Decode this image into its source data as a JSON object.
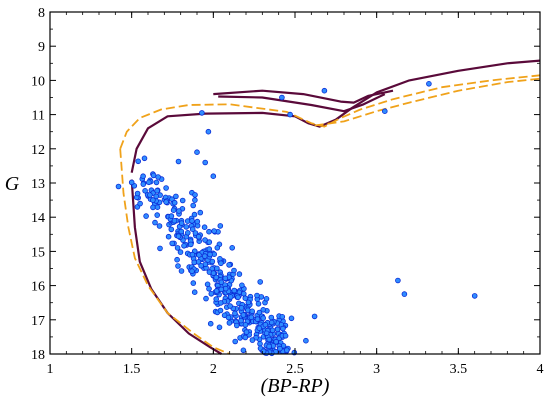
{
  "chart_data": {
    "type": "scatter",
    "xlabel": "(BP-RP)",
    "ylabel": "G",
    "xlim": [
      1,
      4
    ],
    "ylim": [
      18,
      8
    ],
    "y_inverted": true,
    "grid": false,
    "x_ticks": [
      1,
      1.5,
      2,
      2.5,
      3,
      3.5,
      4
    ],
    "x_tick_labels": [
      "1",
      "1.5",
      "2",
      "2.5",
      "3",
      "3.5",
      "4"
    ],
    "y_ticks": [
      8,
      9,
      10,
      11,
      12,
      13,
      14,
      15,
      16,
      17,
      18
    ],
    "y_tick_labels": [
      "8",
      "9",
      "10",
      "11",
      "12",
      "13",
      "14",
      "15",
      "16",
      "17",
      "18"
    ],
    "colors": {
      "points_fill": "#2f8cff",
      "points_edge": "#0a2bd6",
      "isochrone_1": "#5a0a3a",
      "isochrone_2": "#f0a21a"
    },
    "series": [
      {
        "kind": "points",
        "cluster": {
          "count": 460,
          "seed": 7,
          "sequence": [
            [
              1.62,
              13.0
            ],
            [
              1.75,
              13.8
            ],
            [
              1.85,
              14.5
            ],
            [
              1.95,
              15.2
            ],
            [
              2.05,
              15.9
            ],
            [
              2.15,
              16.5
            ],
            [
              2.25,
              17.0
            ],
            [
              2.35,
              17.5
            ],
            [
              2.42,
              17.9
            ]
          ],
          "spread": 0.075
        },
        "extra_points": [
          [
            1.97,
            11.5
          ],
          [
            1.95,
            12.4
          ],
          [
            1.93,
            10.95
          ],
          [
            2.42,
            10.5
          ],
          [
            2.47,
            11.0
          ],
          [
            2.68,
            10.3
          ],
          [
            3.05,
            10.9
          ],
          [
            3.32,
            10.1
          ],
          [
            3.13,
            15.85
          ],
          [
            3.17,
            16.25
          ],
          [
            3.6,
            16.3
          ],
          [
            2.62,
            16.9
          ],
          [
            1.57,
            12.8
          ],
          [
            1.9,
            12.1
          ],
          [
            2.0,
            12.8
          ],
          [
            1.63,
            13.5
          ]
        ]
      },
      {
        "kind": "line",
        "style": "solid",
        "points": [
          [
            1.5,
            12.7
          ],
          [
            1.53,
            12.0
          ],
          [
            1.6,
            11.4
          ],
          [
            1.72,
            11.05
          ],
          [
            1.95,
            10.97
          ],
          [
            2.3,
            10.95
          ],
          [
            2.5,
            11.05
          ],
          [
            2.58,
            11.25
          ],
          [
            2.65,
            11.35
          ],
          [
            2.75,
            11.15
          ],
          [
            2.85,
            10.8
          ],
          [
            3.0,
            10.35
          ],
          [
            3.2,
            10.0
          ],
          [
            3.5,
            9.72
          ],
          [
            3.8,
            9.5
          ],
          [
            4.0,
            9.42
          ]
        ]
      },
      {
        "kind": "line",
        "style": "solid",
        "points": [
          [
            2.0,
            10.4
          ],
          [
            2.3,
            10.3
          ],
          [
            2.55,
            10.4
          ],
          [
            2.78,
            10.62
          ],
          [
            2.86,
            10.65
          ],
          [
            2.95,
            10.45
          ],
          [
            3.1,
            10.3
          ]
        ]
      },
      {
        "kind": "line",
        "style": "solid",
        "points": [
          [
            2.03,
            10.47
          ],
          [
            2.3,
            10.5
          ],
          [
            2.6,
            10.72
          ],
          [
            2.8,
            10.9
          ],
          [
            2.92,
            10.7
          ],
          [
            3.05,
            10.4
          ]
        ]
      },
      {
        "kind": "line",
        "style": "solid",
        "points": [
          [
            1.5,
            12.9
          ],
          [
            1.52,
            14.3
          ],
          [
            1.55,
            15.3
          ],
          [
            1.62,
            16.1
          ],
          [
            1.72,
            16.8
          ],
          [
            1.85,
            17.4
          ],
          [
            1.98,
            17.8
          ],
          [
            2.05,
            18.0
          ]
        ]
      },
      {
        "kind": "line",
        "style": "dashed",
        "points": [
          [
            1.43,
            12.0
          ],
          [
            1.47,
            11.5
          ],
          [
            1.55,
            11.1
          ],
          [
            1.68,
            10.85
          ],
          [
            1.85,
            10.72
          ],
          [
            2.1,
            10.7
          ],
          [
            2.45,
            10.92
          ],
          [
            2.6,
            11.25
          ],
          [
            2.68,
            11.35
          ],
          [
            2.78,
            11.1
          ],
          [
            2.9,
            10.85
          ],
          [
            3.1,
            10.55
          ],
          [
            3.4,
            10.2
          ],
          [
            3.7,
            10.0
          ],
          [
            4.0,
            9.85
          ]
        ]
      },
      {
        "kind": "line",
        "style": "dashed",
        "points": [
          [
            2.62,
            11.32
          ],
          [
            2.8,
            11.2
          ],
          [
            3.0,
            10.9
          ],
          [
            3.2,
            10.65
          ],
          [
            3.5,
            10.3
          ],
          [
            3.8,
            10.05
          ],
          [
            4.0,
            9.95
          ]
        ]
      },
      {
        "kind": "line",
        "style": "dashed",
        "points": [
          [
            1.43,
            12.0
          ],
          [
            1.45,
            13.3
          ],
          [
            1.48,
            14.3
          ],
          [
            1.52,
            15.2
          ],
          [
            1.6,
            16.0
          ],
          [
            1.72,
            16.8
          ],
          [
            1.88,
            17.4
          ],
          [
            2.0,
            17.8
          ],
          [
            2.1,
            18.0
          ]
        ]
      }
    ]
  }
}
